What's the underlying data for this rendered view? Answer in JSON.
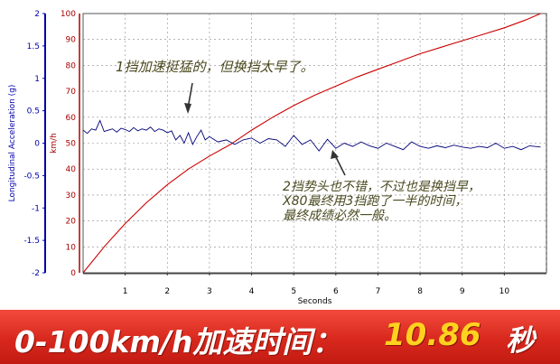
{
  "chart_data": {
    "type": "line",
    "xlabel": "Seconds",
    "y_left_label": "Longitudinal Acceleration (g)",
    "y_right_label": "km/h",
    "x_ticks": [
      1,
      2,
      3,
      4,
      5,
      6,
      7,
      8,
      9,
      10
    ],
    "xlim": [
      0,
      11
    ],
    "accel_ticks": [
      "-2",
      "-1.5",
      "-1",
      "-0.5",
      "0",
      "0.5",
      "1",
      "1.5",
      "2"
    ],
    "ylim_accel": [
      -2,
      2
    ],
    "speed_ticks": [
      0,
      10,
      20,
      30,
      40,
      50,
      60,
      70,
      80,
      90,
      100
    ],
    "ylim_speed": [
      0,
      100
    ],
    "series": [
      {
        "axis": "speed",
        "color": "#cc0000",
        "x": [
          0,
          0.5,
          1,
          1.5,
          2,
          2.5,
          3,
          3.5,
          4,
          4.5,
          5,
          5.5,
          6,
          6.5,
          7,
          7.5,
          8,
          8.5,
          9,
          9.5,
          10,
          10.5,
          10.86
        ],
        "values": [
          0,
          10,
          19,
          27,
          34,
          40,
          45,
          49.5,
          55,
          60,
          64.5,
          68.5,
          72,
          75.5,
          78.5,
          81.5,
          84.5,
          87,
          89.5,
          92,
          94.5,
          97.5,
          100
        ]
      },
      {
        "axis": "accel",
        "color": "#00007a",
        "x": [
          0,
          0.1,
          0.2,
          0.3,
          0.4,
          0.5,
          0.6,
          0.7,
          0.8,
          0.9,
          1.0,
          1.1,
          1.2,
          1.3,
          1.4,
          1.5,
          1.6,
          1.7,
          1.8,
          1.9,
          2.0,
          2.1,
          2.2,
          2.3,
          2.4,
          2.5,
          2.6,
          2.7,
          2.8,
          2.9,
          3.0,
          3.2,
          3.4,
          3.6,
          3.8,
          4.0,
          4.2,
          4.4,
          4.6,
          4.8,
          5.0,
          5.2,
          5.4,
          5.6,
          5.8,
          6.0,
          6.2,
          6.4,
          6.6,
          6.8,
          7.0,
          7.2,
          7.4,
          7.6,
          7.8,
          8.0,
          8.2,
          8.4,
          8.6,
          8.8,
          9.0,
          9.2,
          9.4,
          9.6,
          9.8,
          10.0,
          10.2,
          10.4,
          10.6,
          10.86
        ],
        "values": [
          0.2,
          0.15,
          0.22,
          0.2,
          0.35,
          0.18,
          0.2,
          0.22,
          0.17,
          0.23,
          0.21,
          0.18,
          0.24,
          0.19,
          0.22,
          0.2,
          0.25,
          0.18,
          0.22,
          0.2,
          0.16,
          0.19,
          0.05,
          0.12,
          0.0,
          0.16,
          -0.02,
          0.1,
          0.2,
          0.05,
          0.1,
          0.02,
          0.05,
          -0.02,
          0.05,
          0.08,
          0.0,
          0.07,
          0.05,
          -0.05,
          0.12,
          -0.02,
          0.05,
          -0.12,
          0.06,
          -0.08,
          0.0,
          -0.05,
          0.02,
          -0.04,
          -0.08,
          0.0,
          -0.05,
          -0.1,
          0.02,
          -0.05,
          -0.08,
          -0.04,
          -0.07,
          -0.03,
          -0.06,
          -0.08,
          -0.05,
          -0.07,
          0.0,
          -0.08,
          -0.05,
          -0.1,
          -0.04,
          -0.06
        ]
      }
    ],
    "annotations": [
      {
        "text": "1挡加速挺猛的，但换挡太早了。"
      },
      {
        "lines": [
          "2挡势头也不错，不过也是换挡早，",
          "X80最终用3挡跑了一半的时间，",
          "最终成绩必然一般。"
        ]
      }
    ]
  },
  "banner": {
    "title": "0-100km/h加速时间：",
    "value": "10.86",
    "unit": "秒"
  },
  "colors": {
    "speed_axis": "#aa0000",
    "accel_axis": "#0000aa",
    "grid": "#888888",
    "annotation": "#4a4a20"
  }
}
